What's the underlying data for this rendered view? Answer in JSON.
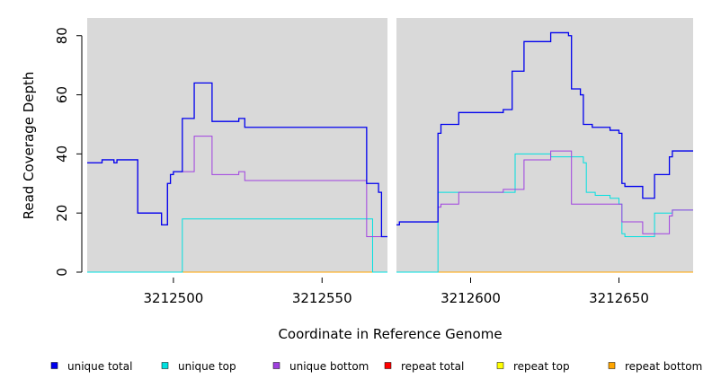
{
  "chart_data": {
    "type": "line",
    "title": "",
    "xlabel": "Coordinate in Reference Genome",
    "ylabel": "Read Coverage Depth",
    "xlim": [
      3212471,
      3212675
    ],
    "ylim": [
      0,
      86
    ],
    "gap": [
      3212572,
      3212575
    ],
    "x_ticks": [
      3212500,
      3212550,
      3212600,
      3212650
    ],
    "y_ticks": [
      0,
      20,
      40,
      60,
      80
    ],
    "x_tick_labels": [
      "3212500",
      "3212550",
      "3212600",
      "3212650"
    ],
    "y_tick_labels": [
      "0",
      "20",
      "40",
      "60",
      "80"
    ],
    "grid": false,
    "legend_position": "bottom",
    "series": [
      {
        "name": "unique total",
        "color": "#0000ee",
        "segments": [
          [
            [
              3212471,
              37
            ],
            [
              3212476,
              37
            ],
            [
              3212476,
              38
            ],
            [
              3212480,
              38
            ],
            [
              3212480,
              37
            ],
            [
              3212481,
              37
            ],
            [
              3212481,
              38
            ],
            [
              3212488,
              38
            ],
            [
              3212488,
              20
            ],
            [
              3212496,
              20
            ],
            [
              3212496,
              16
            ],
            [
              3212498,
              16
            ],
            [
              3212498,
              30
            ],
            [
              3212499,
              30
            ],
            [
              3212499,
              33
            ],
            [
              3212500,
              33
            ],
            [
              3212500,
              34
            ],
            [
              3212503,
              34
            ],
            [
              3212503,
              52
            ],
            [
              3212507,
              52
            ],
            [
              3212507,
              64
            ],
            [
              3212513,
              64
            ],
            [
              3212513,
              51
            ],
            [
              3212522,
              51
            ],
            [
              3212522,
              52
            ],
            [
              3212524,
              52
            ],
            [
              3212524,
              49
            ],
            [
              3212565,
              49
            ],
            [
              3212565,
              30
            ],
            [
              3212569,
              30
            ],
            [
              3212569,
              27
            ],
            [
              3212570,
              27
            ],
            [
              3212570,
              12
            ],
            [
              3212572,
              12
            ]
          ],
          [
            [
              3212575,
              16
            ],
            [
              3212576,
              16
            ],
            [
              3212576,
              17
            ],
            [
              3212589,
              17
            ],
            [
              3212589,
              47
            ],
            [
              3212590,
              47
            ],
            [
              3212590,
              50
            ],
            [
              3212596,
              50
            ],
            [
              3212596,
              54
            ],
            [
              3212611,
              54
            ],
            [
              3212611,
              55
            ],
            [
              3212614,
              55
            ],
            [
              3212614,
              68
            ],
            [
              3212618,
              68
            ],
            [
              3212618,
              78
            ],
            [
              3212627,
              78
            ],
            [
              3212627,
              81
            ],
            [
              3212633,
              81
            ],
            [
              3212633,
              80
            ],
            [
              3212634,
              80
            ],
            [
              3212634,
              62
            ],
            [
              3212637,
              62
            ],
            [
              3212637,
              60
            ],
            [
              3212638,
              60
            ],
            [
              3212638,
              50
            ],
            [
              3212641,
              50
            ],
            [
              3212641,
              49
            ],
            [
              3212647,
              49
            ],
            [
              3212647,
              48
            ],
            [
              3212650,
              48
            ],
            [
              3212650,
              47
            ],
            [
              3212651,
              47
            ],
            [
              3212651,
              30
            ],
            [
              3212652,
              30
            ],
            [
              3212652,
              29
            ],
            [
              3212658,
              29
            ],
            [
              3212658,
              25
            ],
            [
              3212662,
              25
            ],
            [
              3212662,
              33
            ],
            [
              3212667,
              33
            ],
            [
              3212667,
              39
            ],
            [
              3212668,
              39
            ],
            [
              3212668,
              41
            ],
            [
              3212675,
              41
            ]
          ]
        ]
      },
      {
        "name": "unique top",
        "color": "#00e0e0",
        "segments": [
          [
            [
              3212471,
              0
            ],
            [
              3212503,
              0
            ],
            [
              3212503,
              18
            ],
            [
              3212567,
              18
            ],
            [
              3212567,
              0
            ],
            [
              3212572,
              0
            ]
          ],
          [
            [
              3212575,
              0
            ],
            [
              3212589,
              0
            ],
            [
              3212589,
              27
            ],
            [
              3212615,
              27
            ],
            [
              3212615,
              40
            ],
            [
              3212627,
              40
            ],
            [
              3212627,
              39
            ],
            [
              3212638,
              39
            ],
            [
              3212638,
              37
            ],
            [
              3212639,
              37
            ],
            [
              3212639,
              27
            ],
            [
              3212642,
              27
            ],
            [
              3212642,
              26
            ],
            [
              3212647,
              26
            ],
            [
              3212647,
              25
            ],
            [
              3212650,
              25
            ],
            [
              3212650,
              23
            ],
            [
              3212651,
              23
            ],
            [
              3212651,
              13
            ],
            [
              3212652,
              13
            ],
            [
              3212652,
              12
            ],
            [
              3212662,
              12
            ],
            [
              3212662,
              20
            ],
            [
              3212668,
              20
            ],
            [
              3212668,
              21
            ],
            [
              3212675,
              21
            ]
          ]
        ]
      },
      {
        "name": "unique bottom",
        "color": "#a040e0",
        "segments": [
          [
            [
              3212471,
              37
            ],
            [
              3212476,
              37
            ],
            [
              3212476,
              38
            ],
            [
              3212480,
              38
            ],
            [
              3212480,
              37
            ],
            [
              3212481,
              37
            ],
            [
              3212481,
              38
            ],
            [
              3212488,
              38
            ],
            [
              3212488,
              20
            ],
            [
              3212496,
              20
            ],
            [
              3212496,
              16
            ],
            [
              3212498,
              16
            ],
            [
              3212498,
              30
            ],
            [
              3212499,
              30
            ],
            [
              3212499,
              33
            ],
            [
              3212500,
              33
            ],
            [
              3212500,
              34
            ],
            [
              3212507,
              34
            ],
            [
              3212507,
              46
            ],
            [
              3212513,
              46
            ],
            [
              3212513,
              33
            ],
            [
              3212522,
              33
            ],
            [
              3212522,
              34
            ],
            [
              3212524,
              34
            ],
            [
              3212524,
              31
            ],
            [
              3212565,
              31
            ],
            [
              3212565,
              12
            ],
            [
              3212572,
              12
            ]
          ],
          [
            [
              3212575,
              16
            ],
            [
              3212576,
              16
            ],
            [
              3212576,
              17
            ],
            [
              3212589,
              17
            ],
            [
              3212589,
              22
            ],
            [
              3212590,
              22
            ],
            [
              3212590,
              23
            ],
            [
              3212596,
              23
            ],
            [
              3212596,
              27
            ],
            [
              3212611,
              27
            ],
            [
              3212611,
              28
            ],
            [
              3212618,
              28
            ],
            [
              3212618,
              38
            ],
            [
              3212627,
              38
            ],
            [
              3212627,
              41
            ],
            [
              3212634,
              41
            ],
            [
              3212634,
              23
            ],
            [
              3212651,
              23
            ],
            [
              3212651,
              17
            ],
            [
              3212658,
              17
            ],
            [
              3212658,
              13
            ],
            [
              3212667,
              13
            ],
            [
              3212667,
              19
            ],
            [
              3212668,
              19
            ],
            [
              3212668,
              21
            ],
            [
              3212675,
              21
            ]
          ]
        ]
      },
      {
        "name": "repeat total",
        "color": "#ff0000",
        "segments": [
          [
            [
              3212471,
              0
            ],
            [
              3212572,
              0
            ]
          ],
          [
            [
              3212575,
              0
            ],
            [
              3212675,
              0
            ]
          ]
        ]
      },
      {
        "name": "repeat top",
        "color": "#ffff00",
        "segments": [
          [
            [
              3212471,
              0
            ],
            [
              3212572,
              0
            ]
          ],
          [
            [
              3212575,
              0
            ],
            [
              3212675,
              0
            ]
          ]
        ]
      },
      {
        "name": "repeat bottom",
        "color": "#ffa500",
        "segments": [
          [
            [
              3212471,
              0
            ],
            [
              3212572,
              0
            ]
          ],
          [
            [
              3212575,
              0
            ],
            [
              3212675,
              0
            ]
          ]
        ]
      }
    ]
  }
}
